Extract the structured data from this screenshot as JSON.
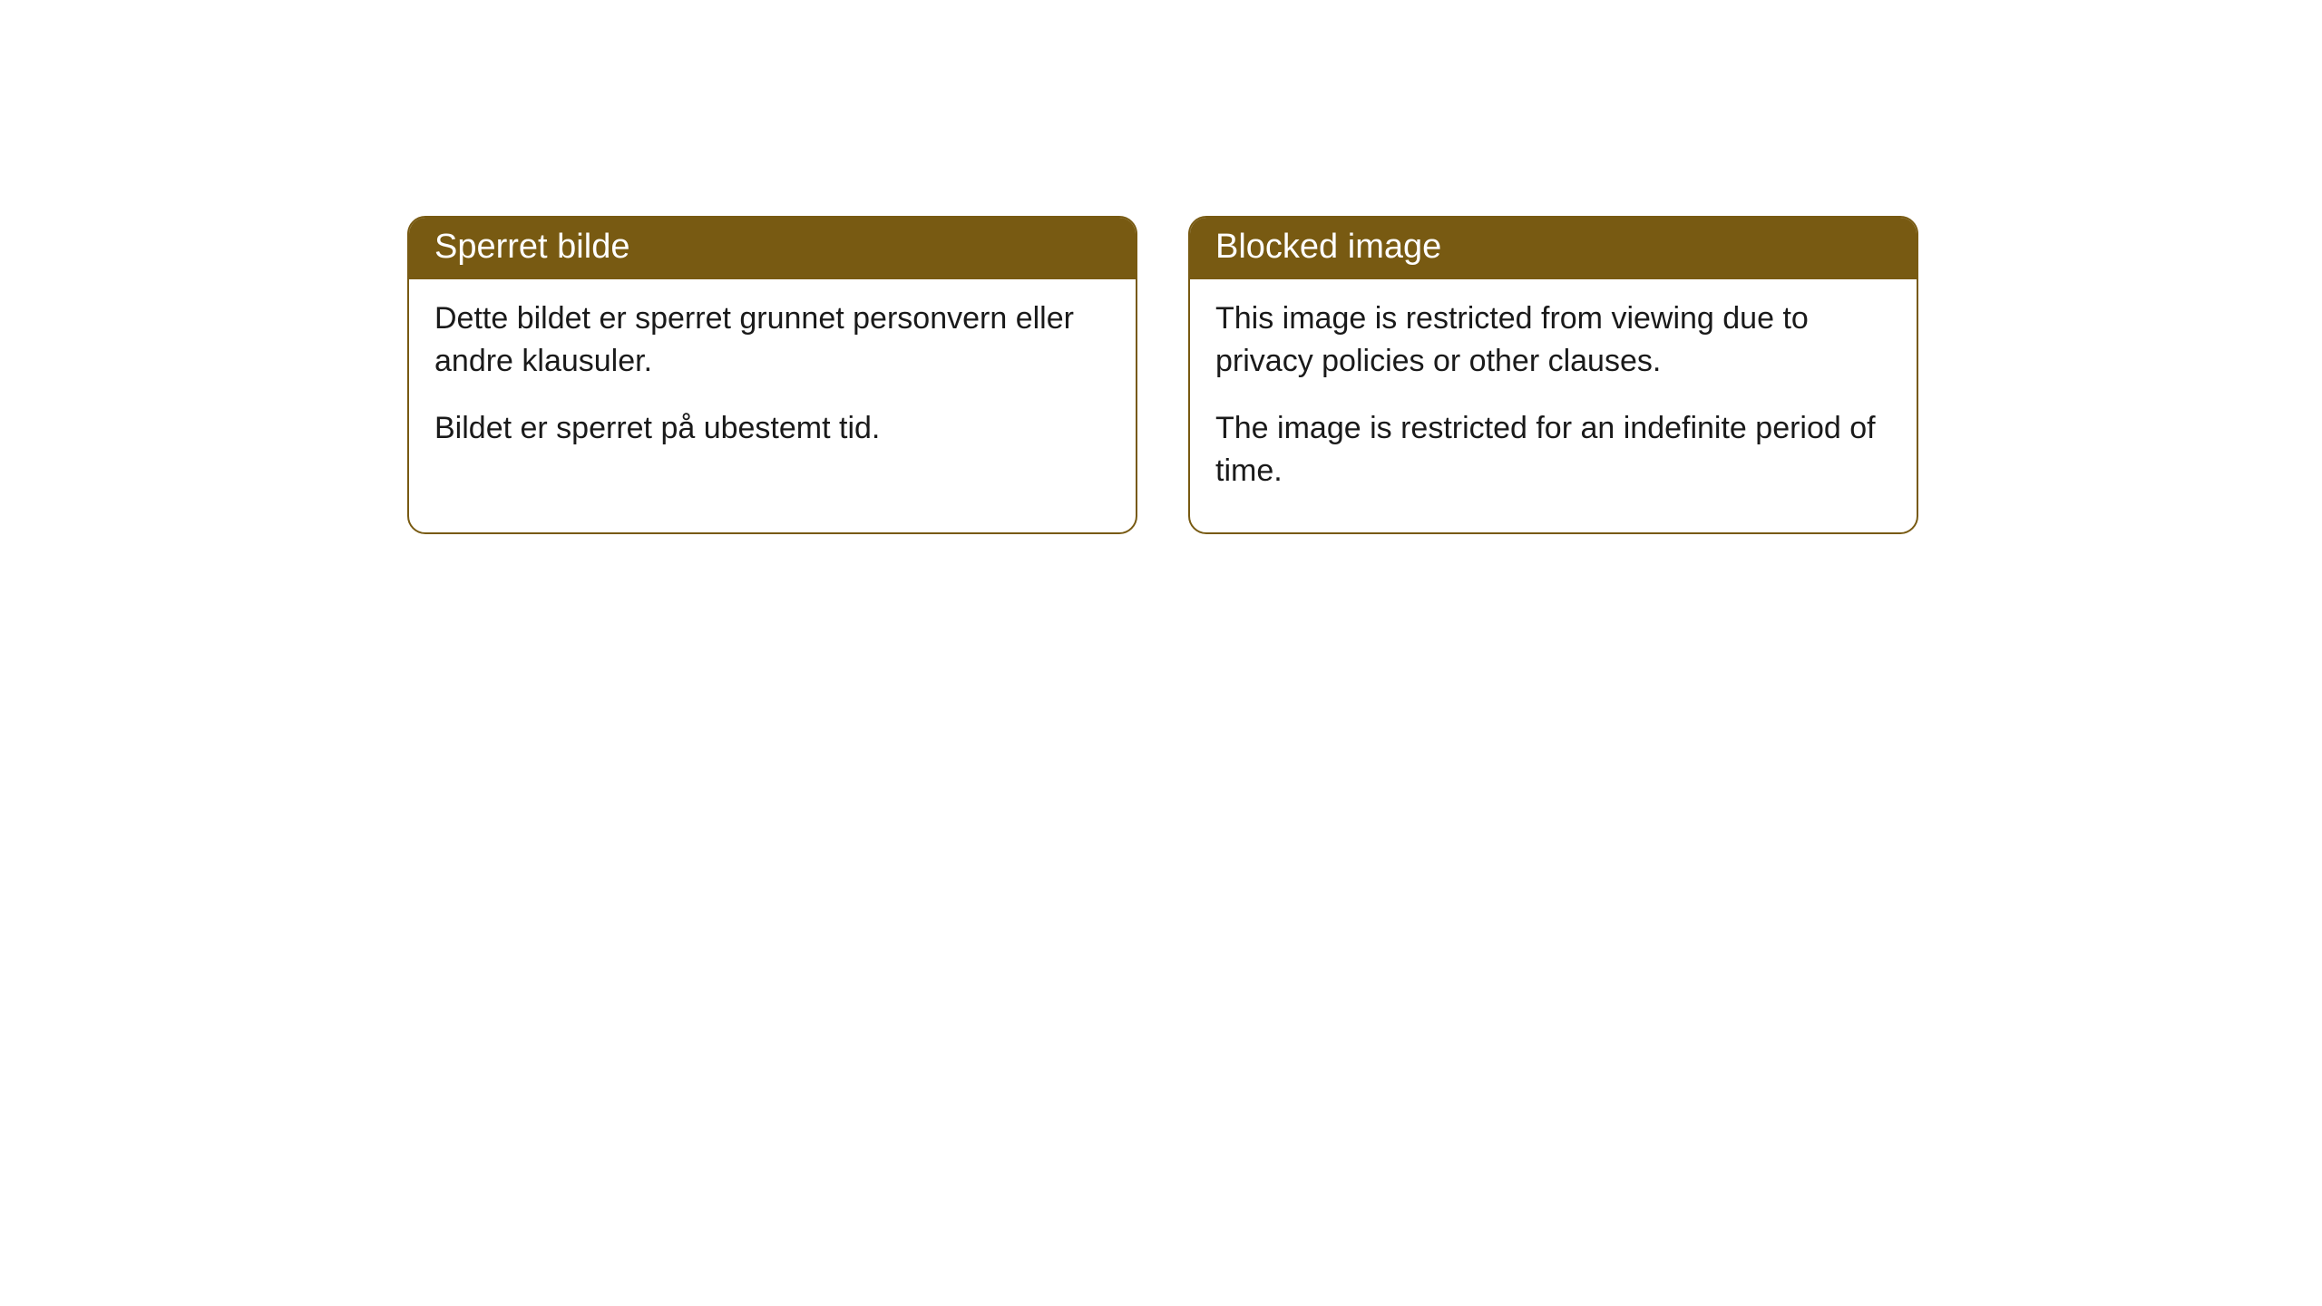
{
  "cards": [
    {
      "title": "Sperret bilde",
      "paragraph1": "Dette bildet er sperret grunnet personvern eller andre klausuler.",
      "paragraph2": "Bildet er sperret på ubestemt tid."
    },
    {
      "title": "Blocked image",
      "paragraph1": "This image is restricted from viewing due to privacy policies or other clauses.",
      "paragraph2": "The image is restricted for an indefinite period of time."
    }
  ],
  "styling": {
    "card_border_color": "#785a12",
    "header_background_color": "#785a12",
    "header_text_color": "#ffffff",
    "body_text_color": "#1a1a1a",
    "background_color": "#ffffff",
    "border_radius": 20,
    "header_fontsize": 38,
    "body_fontsize": 34
  }
}
